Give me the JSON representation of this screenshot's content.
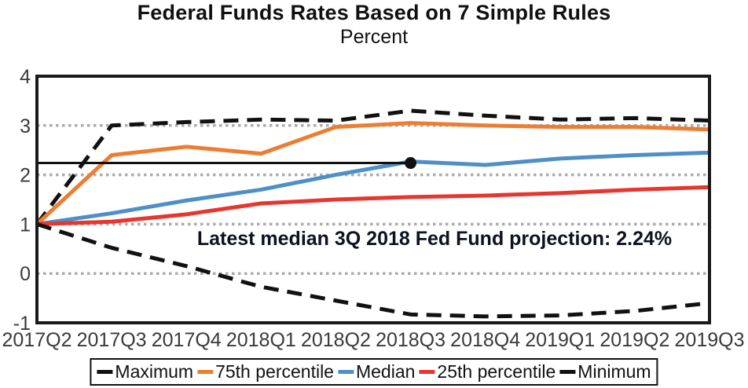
{
  "chart_data": {
    "type": "line",
    "title": "Federal Funds Rates Based on 7 Simple Rules",
    "subtitle": "Percent",
    "categories": [
      "2017Q2",
      "2017Q3",
      "2017Q4",
      "2018Q1",
      "2018Q2",
      "2018Q3",
      "2018Q4",
      "2019Q1",
      "2019Q2",
      "2019Q3"
    ],
    "ylim": [
      -1,
      4
    ],
    "yticks": [
      4,
      3,
      2,
      1,
      0,
      -1
    ],
    "gridlines": [
      3,
      2,
      1,
      0
    ],
    "grid_color": "#ababab",
    "axis_color": "#1a1a1a",
    "legend_position": "bottom",
    "series": [
      {
        "name": "Maximum",
        "color": "#111111",
        "style": "dashed",
        "values": [
          1.0,
          3.0,
          3.07,
          3.12,
          3.1,
          3.3,
          3.2,
          3.12,
          3.15,
          3.1
        ]
      },
      {
        "name": "75th percentile",
        "color": "#ED7D31",
        "style": "solid",
        "values": [
          1.0,
          2.4,
          2.57,
          2.43,
          2.97,
          3.05,
          3.0,
          2.97,
          2.97,
          2.92
        ]
      },
      {
        "name": "Median",
        "color": "#4E8FC7",
        "style": "solid",
        "values": [
          1.0,
          1.22,
          1.48,
          1.7,
          2.0,
          2.27,
          2.2,
          2.33,
          2.4,
          2.45
        ]
      },
      {
        "name": "25th percentile",
        "color": "#E8352E",
        "style": "solid",
        "values": [
          1.0,
          1.05,
          1.2,
          1.42,
          1.5,
          1.55,
          1.58,
          1.63,
          1.7,
          1.75
        ]
      },
      {
        "name": "Minimum",
        "color": "#111111",
        "style": "dashed",
        "values": [
          1.0,
          0.52,
          0.15,
          -0.27,
          -0.55,
          -0.83,
          -0.87,
          -0.85,
          -0.76,
          -0.6
        ]
      }
    ],
    "reference_line": {
      "value": 2.24,
      "from_index": 0,
      "to_index": 5,
      "color": "#111111",
      "marker": "dot"
    },
    "annotation": "Latest median 3Q 2018 Fed Fund projection: 2.24%"
  }
}
